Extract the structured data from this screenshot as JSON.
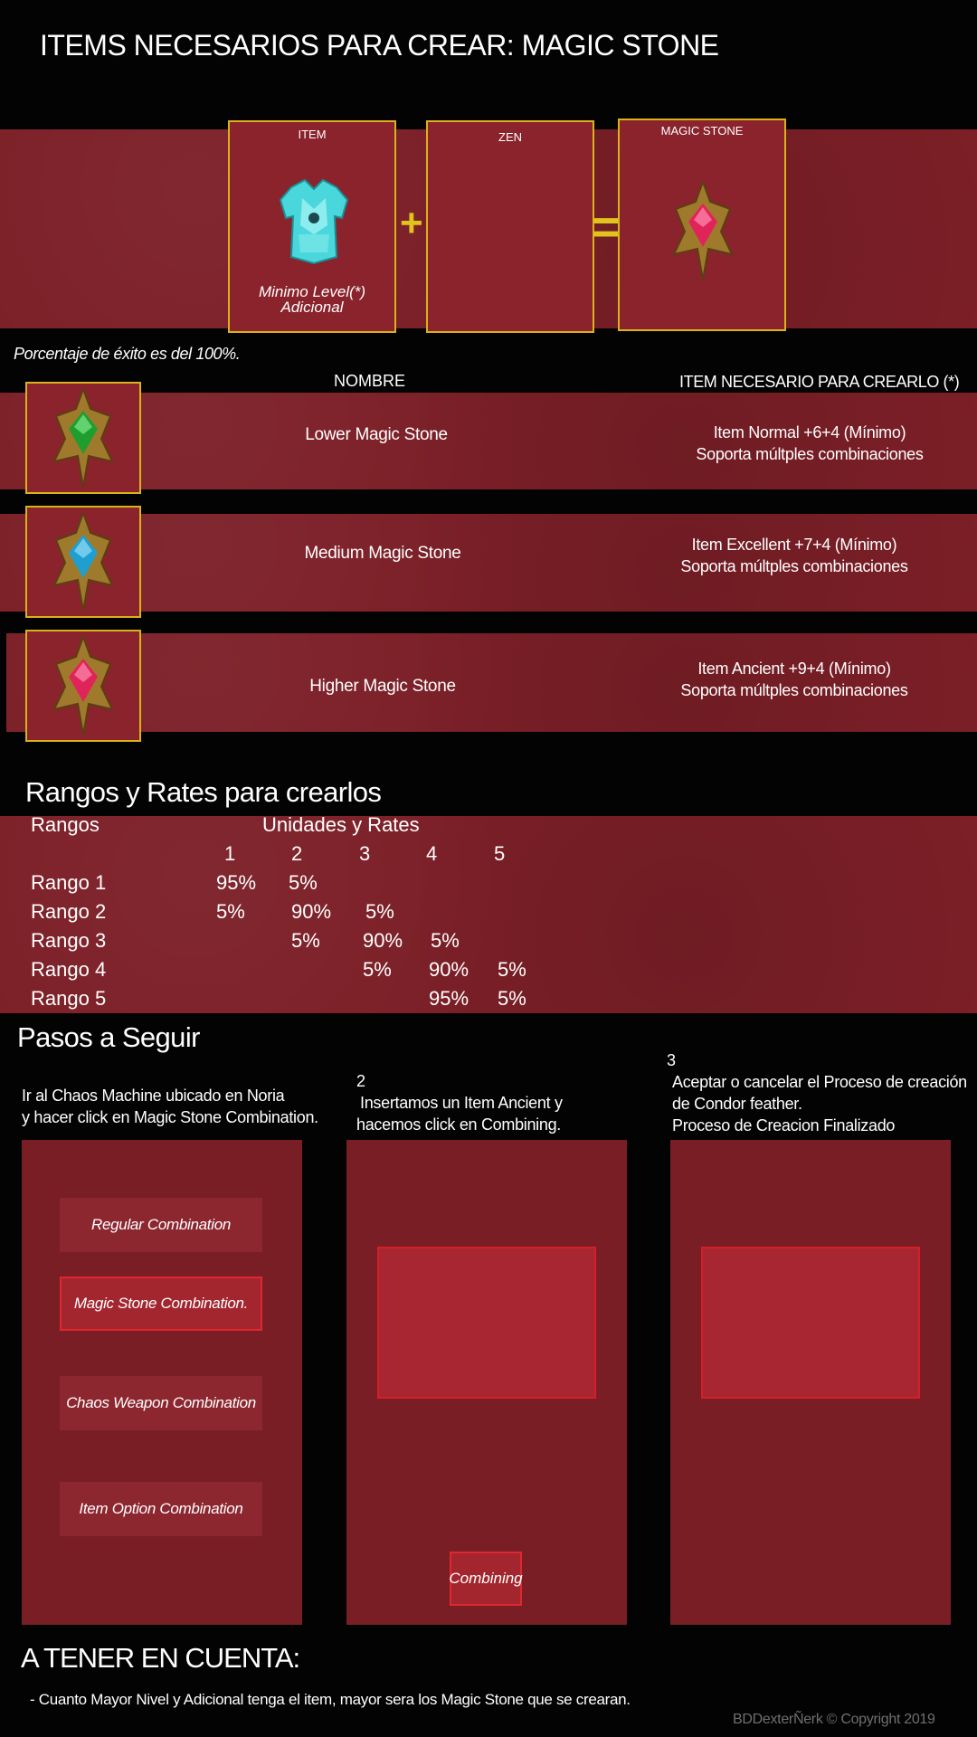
{
  "header": {
    "title": "ITEMS NECESARIOS PARA CREAR: MAGIC STONE"
  },
  "recipe": {
    "slot_item_label": "ITEM",
    "slot_item_note_1": "Minimo Level(*)",
    "slot_item_note_2": "Adicional",
    "slot_zen_label": "ZEN",
    "slot_result_label": "MAGIC STONE",
    "plus": "+",
    "equals": "="
  },
  "success_rate": "Porcentaje de éxito es del 100%.",
  "stones": {
    "col_name": "NOMBRE",
    "col_requirement": "ITEM NECESARIO PARA CREARLO (*)",
    "rows": [
      {
        "name": "Lower Magic Stone",
        "req_1": "Item Normal +6+4 (Mínimo)",
        "req_2": "Soporta múltples combinaciones",
        "color": "#1f9d2e"
      },
      {
        "name": "Medium Magic Stone",
        "req_1": "Item Excellent +7+4 (Mínimo)",
        "req_2": "Soporta múltples combinaciones",
        "color": "#1e9fd0"
      },
      {
        "name": "Higher Magic Stone",
        "req_1": "Item Ancient +9+4 (Mínimo)",
        "req_2": "Soporta múltples combinaciones",
        "color": "#e0245a"
      }
    ]
  },
  "rates": {
    "title": "Rangos y Rates para crearlos",
    "col_ranges": "Rangos",
    "col_units": "Unidades y Rates",
    "units": [
      "1",
      "2",
      "3",
      "4",
      "5"
    ],
    "rows": [
      {
        "label": "Rango 1",
        "values": [
          "95%",
          "5%",
          "",
          "",
          ""
        ]
      },
      {
        "label": "Rango 2",
        "values": [
          "5%",
          "90%",
          "5%",
          "",
          ""
        ]
      },
      {
        "label": "Rango 3",
        "values": [
          "",
          "5%",
          "90%",
          "5%",
          ""
        ]
      },
      {
        "label": "Rango 4",
        "values": [
          "",
          "",
          "5%",
          "90%",
          "5%"
        ]
      },
      {
        "label": "Rango 5",
        "values": [
          "",
          "",
          "",
          "95%",
          "5%"
        ]
      }
    ]
  },
  "steps": {
    "title": "Pasos a Seguir",
    "step1_line1": "Ir al Chaos Machine ubicado en Noria",
    "step1_line2": "y hacer click en Magic Stone Combination.",
    "step2_num": "2",
    "step2_line1": "Insertamos un Item Ancient y",
    "step2_line2": "hacemos click en Combining.",
    "step3_num": "3",
    "step3_line1": "Aceptar o cancelar el Proceso de creación",
    "step3_line2": "de Condor feather.",
    "step3_line3": "Proceso de Creacion Finalizado",
    "menu": [
      "Regular Combination",
      "Magic Stone Combination.",
      "Chaos Weapon Combination",
      "Item Option Combination"
    ],
    "combine_button": "Combining"
  },
  "notes": {
    "title": "A TENER EN CUENTA:",
    "text": "- Cuanto Mayor Nivel y Adicional tenga el item, mayor sera los Magic Stone que se crearan."
  },
  "copyright": "BDDexterÑerk © Copyright 2019",
  "colors": {
    "accent_yellow": "#d9b21c",
    "band_red": "#7c1f27",
    "active_red": "#e0262f"
  }
}
